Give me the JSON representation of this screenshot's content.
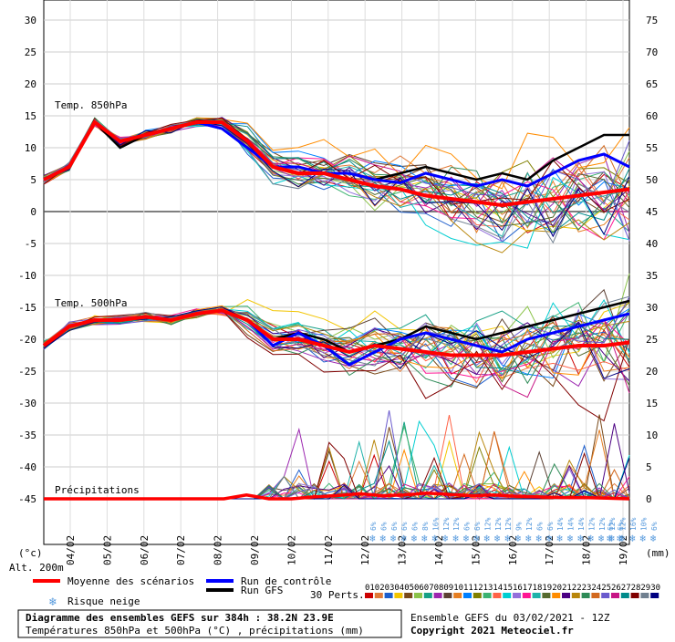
{
  "chart_data": {
    "type": "line",
    "left_axis": {
      "unit": "(°c)",
      "ticks": [
        "30",
        "25",
        "20",
        "15",
        "10",
        "5",
        "0",
        "-5",
        "-10",
        "-15",
        "-20",
        "-25",
        "-30",
        "-35",
        "-40",
        "-45"
      ],
      "values": [
        30,
        25,
        20,
        15,
        10,
        5,
        0,
        -5,
        -10,
        -15,
        -20,
        -25,
        -30,
        -35,
        -40,
        -45
      ]
    },
    "right_axis": {
      "unit": "(mm)",
      "ticks": [
        "75",
        "70",
        "65",
        "60",
        "55",
        "50",
        "45",
        "40",
        "35",
        "30",
        "25",
        "20",
        "15",
        "10",
        "5",
        "0"
      ]
    },
    "x_ticks": [
      "04/02",
      "05/02",
      "06/02",
      "07/02",
      "08/02",
      "09/02",
      "10/02",
      "11/02",
      "12/02",
      "13/02",
      "14/02",
      "15/02",
      "16/02",
      "17/02",
      "18/02",
      "19/02"
    ],
    "altitude_label": "Alt. 200m",
    "panels": [
      {
        "label": "Temp. 850hPa",
        "mean": [
          5,
          7,
          14,
          11,
          12,
          13,
          14,
          14,
          11,
          7,
          6,
          6,
          5,
          4,
          3.5,
          2.5,
          2,
          1.5,
          1,
          1.5,
          2,
          2.5,
          3,
          3.5
        ],
        "control": [
          5,
          7,
          14,
          11,
          12,
          13,
          14,
          13,
          10,
          7,
          7,
          6,
          6,
          5,
          4.5,
          6,
          5,
          4,
          5,
          4,
          6,
          8,
          9,
          7
        ],
        "gfs": [
          5,
          7,
          14,
          10,
          12,
          13,
          14,
          13,
          10,
          7,
          6,
          6,
          6,
          5,
          6,
          7,
          6,
          5,
          6,
          5,
          8,
          10,
          12,
          12
        ]
      },
      {
        "label": "Temp. 500hPa",
        "mean": [
          -21,
          -18,
          -17,
          -17,
          -16.5,
          -17,
          -16,
          -15.5,
          -17,
          -20,
          -20,
          -21,
          -22,
          -21,
          -21.5,
          -22,
          -22.5,
          -22.5,
          -22.5,
          -22,
          -21.5,
          -21,
          -21,
          -20.5
        ],
        "control": [
          -21,
          -18,
          -17,
          -17,
          -16.5,
          -17,
          -16,
          -15.5,
          -17,
          -21,
          -19,
          -21,
          -24,
          -22,
          -20,
          -19,
          -20,
          -21,
          -22,
          -20,
          -19,
          -18,
          -17,
          -16
        ],
        "gfs": [
          -21,
          -18,
          -17,
          -17,
          -16.5,
          -17,
          -16,
          -15.5,
          -17,
          -20,
          -19,
          -20,
          -22,
          -21,
          -20,
          -18,
          -19,
          -20,
          -19,
          -18,
          -17,
          -16,
          -15,
          -14
        ]
      },
      {
        "label": "Précipitations",
        "mean": [
          0,
          0,
          0,
          0,
          0,
          0,
          0,
          0,
          0,
          0.6,
          0,
          0,
          0.3,
          0.5,
          0.8,
          0.5,
          0.6,
          0.9,
          0.7,
          0.5,
          0.6,
          0.4,
          0.3,
          0.2,
          0.2,
          0.1,
          0
        ],
        "peaks": [
          6.5,
          4,
          6,
          13,
          14,
          13.5,
          9,
          10,
          11,
          12,
          14,
          11,
          9,
          6,
          8
        ]
      }
    ],
    "snow_risk_percent": [
      "6%",
      "6%",
      "6%",
      "6%",
      "6%",
      "8%",
      "16%",
      "12%",
      "12%",
      "6%",
      "6%",
      "12%",
      "12%",
      "12%",
      "9%",
      "12%",
      "6%",
      "6%",
      "14%",
      "14%",
      "14%",
      "12%",
      "12%",
      "12%",
      "12%",
      "16%",
      "10%",
      "6%",
      "6%",
      "6%"
    ],
    "legend": {
      "mean": "Moyenne des scénarios",
      "control": "Run de contrôle",
      "gfs": "Run GFS",
      "snow": "Risque neige",
      "perts": "30 Perts.",
      "pert_numbers": [
        "01",
        "02",
        "03",
        "04",
        "05",
        "06",
        "07",
        "08",
        "09",
        "10",
        "11",
        "12",
        "13",
        "14",
        "15",
        "16",
        "17",
        "18",
        "19",
        "20",
        "21",
        "22",
        "23",
        "24",
        "25",
        "26",
        "27",
        "28",
        "29",
        "30"
      ],
      "pert_colors": [
        "#cc0000",
        "#e07b39",
        "#1e5ecc",
        "#f2c500",
        "#7a4a1a",
        "#8bc34a",
        "#16a085",
        "#9c27b0",
        "#5c4033",
        "#e67e22",
        "#0080ff",
        "#808000",
        "#3cb371",
        "#ff6347",
        "#00ced1",
        "#9370db",
        "#ff1493",
        "#20b2aa",
        "#556b2f",
        "#ff8c00",
        "#4b0082",
        "#b8860b",
        "#2e8b57",
        "#d2691e",
        "#6a5acd",
        "#c71585",
        "#008b8b",
        "#800000",
        "#708090",
        "#000080"
      ]
    },
    "colors": {
      "mean": "#ff0000",
      "control": "#0000ff",
      "gfs": "#000000",
      "snow": "#5599dd"
    }
  },
  "footer": {
    "title": "Diagramme des ensembles GEFS sur 384h : 38.2N 23.9E",
    "subtitle": "Températures 850hPa et 500hPa (°C) , précipitations (mm)",
    "run": "Ensemble GEFS du 03/02/2021 - 12Z",
    "copyright": "Copyright 2021 Meteociel.fr"
  }
}
